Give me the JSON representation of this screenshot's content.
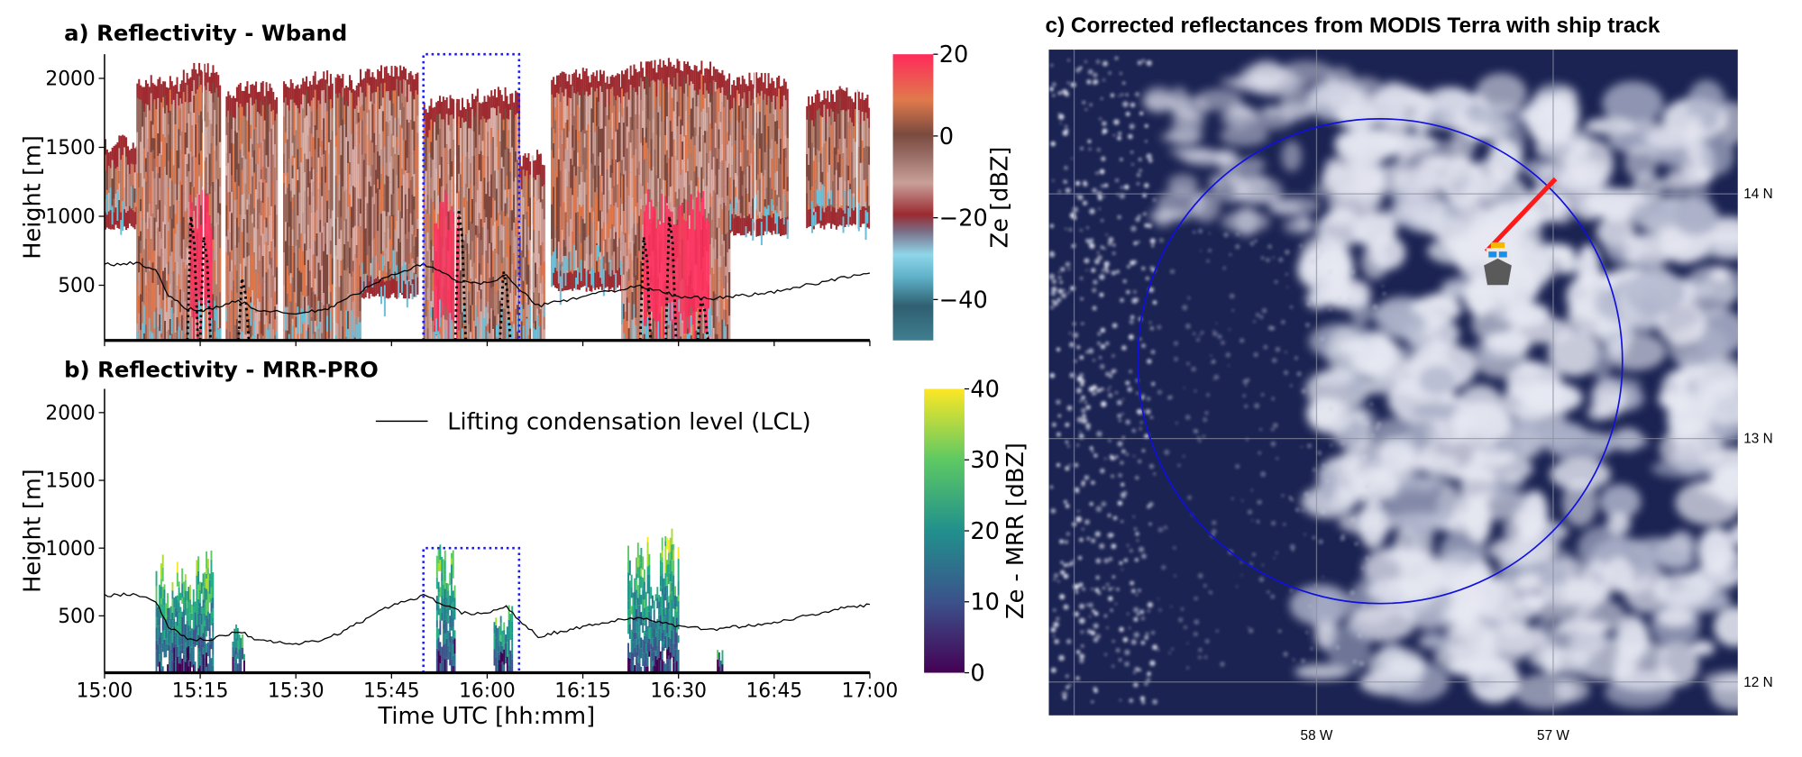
{
  "chart_data": [
    {
      "type": "heatmap",
      "title": "a) Reflectivity - Wband",
      "ylabel": "Height [m]",
      "ylim": [
        100,
        2175
      ],
      "yticks": [
        "500",
        "1000",
        "1500",
        "2000"
      ],
      "xlim": [
        "15:00",
        "17:00"
      ],
      "colorbar": {
        "label": "Ze [dBZ]",
        "range": [
          -50,
          20
        ],
        "ticks": [
          "20",
          "0",
          "−20",
          "−40"
        ],
        "colormap": "cyan-darkred-pink-orange-red"
      },
      "echo_columns": [
        {
          "start": "15:00",
          "end": "15:05",
          "top": 1600,
          "base": 950
        },
        {
          "start": "15:05",
          "end": "15:12",
          "top": 2050,
          "base": 100
        },
        {
          "start": "15:12",
          "end": "15:18",
          "top": 2120,
          "base": 100,
          "core": true
        },
        {
          "start": "15:19",
          "end": "15:27",
          "top": 2000,
          "base": 100
        },
        {
          "start": "15:28",
          "end": "15:40",
          "top": 2060,
          "base": 100
        },
        {
          "start": "15:40",
          "end": "15:49",
          "top": 2120,
          "base": 450
        },
        {
          "start": "15:50",
          "end": "15:57",
          "top": 1900,
          "base": 100,
          "core": true
        },
        {
          "start": "15:57",
          "end": "16:05",
          "top": 1950,
          "base": 100
        },
        {
          "start": "16:05",
          "end": "16:09",
          "top": 1500,
          "base": 100
        },
        {
          "start": "16:10",
          "end": "16:21",
          "top": 2080,
          "base": 500
        },
        {
          "start": "16:21",
          "end": "16:38",
          "top": 2150,
          "base": 100,
          "core": true
        },
        {
          "start": "16:38",
          "end": "16:47",
          "top": 2050,
          "base": 900
        },
        {
          "start": "16:50",
          "end": "17:00",
          "top": 1950,
          "base": 950
        }
      ],
      "dotted_traces": [
        {
          "time": "15:13",
          "top": 1000
        },
        {
          "time": "15:15",
          "top": 850
        },
        {
          "time": "15:21",
          "top": 550
        },
        {
          "time": "15:55",
          "top": 1050
        },
        {
          "time": "16:02",
          "top": 600
        },
        {
          "time": "16:24",
          "top": 850
        },
        {
          "time": "16:28",
          "top": 1000
        },
        {
          "time": "16:33",
          "top": 400
        }
      ]
    },
    {
      "type": "heatmap",
      "title": "b) Reflectivity - MRR-PRO",
      "xlabel": "Time UTC [hh:mm]",
      "ylabel": "Height [m]",
      "ylim": [
        80,
        2175
      ],
      "yticks": [
        "500",
        "1000",
        "1500",
        "2000"
      ],
      "xticks": [
        "15:00",
        "15:15",
        "15:30",
        "15:45",
        "16:00",
        "16:15",
        "16:30",
        "16:45",
        "17:00"
      ],
      "colorbar": {
        "label": "Ze - MRR [dBZ]",
        "range": [
          0,
          40
        ],
        "ticks": [
          "40",
          "30",
          "20",
          "10",
          "0"
        ],
        "colormap": "viridis"
      },
      "echo_columns": [
        {
          "start": "15:08",
          "end": "15:17",
          "top": 950
        },
        {
          "start": "15:20",
          "end": "15:22",
          "top": 420
        },
        {
          "start": "15:52",
          "end": "15:55",
          "top": 1100
        },
        {
          "start": "16:01",
          "end": "16:04",
          "top": 580
        },
        {
          "start": "16:22",
          "end": "16:30",
          "top": 1080
        },
        {
          "start": "16:36",
          "end": "16:37",
          "top": 280
        }
      ],
      "legend": {
        "position": "top-right",
        "entries": [
          "Lifting condensation level (LCL)"
        ]
      }
    }
  ],
  "lcl": {
    "name": "Lifting condensation level (LCL)",
    "times": [
      "15:00",
      "15:05",
      "15:08",
      "15:10",
      "15:13",
      "15:16",
      "15:19",
      "15:21",
      "15:24",
      "15:30",
      "15:35",
      "15:40",
      "15:45",
      "15:50",
      "15:53",
      "15:56",
      "16:00",
      "16:03",
      "16:05",
      "16:08",
      "16:12",
      "16:18",
      "16:24",
      "16:30",
      "16:35",
      "16:45",
      "16:55",
      "17:00"
    ],
    "heights": [
      650,
      660,
      610,
      420,
      330,
      320,
      360,
      390,
      320,
      290,
      330,
      450,
      580,
      650,
      590,
      520,
      520,
      570,
      470,
      350,
      390,
      450,
      490,
      420,
      400,
      450,
      550,
      580
    ]
  },
  "highlight_box": {
    "start": "15:50",
    "end": "16:05",
    "color": "#1a1aff"
  },
  "panel_c": {
    "title": "c) Corrected reflectances from MODIS Terra with ship track",
    "lat_labels": [
      "14 N",
      "13 N",
      "12 N"
    ],
    "lon_labels": [
      "58 W",
      "57 W"
    ],
    "circle_color": "#1010e0",
    "track_color": "#ff1a1a",
    "ship_icon": "ship-icon"
  }
}
